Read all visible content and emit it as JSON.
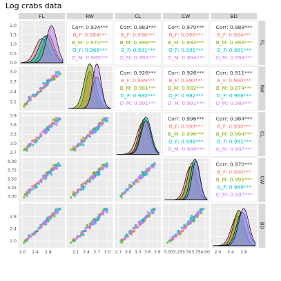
{
  "title": "Log crabs data",
  "chart_data": {
    "type": "scatter",
    "title": "Log crabs data",
    "variables": [
      "FL",
      "RW",
      "CL",
      "CW",
      "BD"
    ],
    "groups": [
      {
        "name": "B_F",
        "color": "#F8766D"
      },
      {
        "name": "B_M",
        "color": "#7CAE00"
      },
      {
        "name": "O_F",
        "color": "#00BFC4"
      },
      {
        "name": "O_M",
        "color": "#C77CFF"
      }
    ],
    "axes": {
      "FL": {
        "range": [
          1.95,
          3.25
        ],
        "ticks": [
          2.0,
          2.4,
          2.8
        ],
        "labels": [
          "2.0",
          "2.4",
          "2.8"
        ]
      },
      "RW": {
        "range": [
          1.9,
          3.1
        ],
        "ticks": [
          2.1,
          2.4,
          2.7,
          3.0
        ],
        "labels": [
          "2.1",
          "2.4",
          "2.7",
          "3.0"
        ]
      },
      "CL": {
        "range": [
          2.65,
          3.95
        ],
        "ticks": [
          2.7,
          3.0,
          3.3,
          3.6,
          3.9
        ],
        "labels": [
          "2.7",
          "3.0",
          "3.3",
          "3.6",
          "3.9"
        ]
      },
      "CW": {
        "range": [
          2.9,
          4.05
        ],
        "ticks": [
          3.0,
          3.25,
          3.5,
          3.75,
          4.0
        ],
        "labels": [
          "3.00",
          "3.25",
          "3.50",
          "3.75",
          "4.00"
        ]
      },
      "BD": {
        "range": [
          1.85,
          3.15
        ],
        "ticks": [
          2.0,
          2.4,
          2.8
        ],
        "labels": [
          "2.0",
          "2.4",
          "2.8"
        ]
      }
    },
    "density_axis": {
      "ticks": [
        0.0,
        0.5,
        1.0,
        1.5,
        2.0
      ],
      "labels": [
        "0.0",
        "0.5",
        "1.0",
        "1.5",
        "2.0"
      ],
      "max": 2.15
    },
    "densities": {
      "FL": [
        [
          2.6,
          0.2,
          1.3
        ],
        [
          2.8,
          0.18,
          1.5
        ],
        [
          2.72,
          0.2,
          1.45
        ],
        [
          2.9,
          0.16,
          2.0
        ]
      ],
      "RW": [
        [
          2.5,
          0.12,
          2.0
        ],
        [
          2.5,
          0.16,
          2.4
        ],
        [
          2.7,
          0.13,
          1.7
        ],
        [
          2.7,
          0.12,
          2.4
        ]
      ],
      "CL": [
        [
          3.45,
          0.18,
          1.7
        ],
        [
          3.5,
          0.16,
          1.9
        ],
        [
          3.55,
          0.16,
          2.0
        ],
        [
          3.55,
          0.15,
          1.8
        ]
      ],
      "CW": [
        [
          3.6,
          0.14,
          1.8
        ],
        [
          3.65,
          0.13,
          2.0
        ],
        [
          3.72,
          0.12,
          2.2
        ],
        [
          3.75,
          0.11,
          2.1
        ]
      ],
      "BD": [
        [
          2.6,
          0.18,
          1.6
        ],
        [
          2.65,
          0.16,
          1.9
        ],
        [
          2.75,
          0.17,
          1.8
        ],
        [
          2.8,
          0.16,
          2.0
        ]
      ]
    },
    "corr_label": "Corr:",
    "correlations": {
      "0-1": {
        "overall": "0.924***",
        "groups": [
          "0.984***",
          "0.974***",
          "0.968***",
          "0.985***"
        ]
      },
      "0-2": {
        "overall": "0.983***",
        "groups": [
          "0.996***",
          "0.996***",
          "0.991***",
          "0.995***"
        ]
      },
      "0-3": {
        "overall": "0.970***",
        "groups": [
          "0.996***",
          "0.993***",
          "0.991***",
          "0.994***"
        ]
      },
      "0-4": {
        "overall": "0.989***",
        "groups": [
          "0.984***",
          "0.993***",
          "0.981***",
          "0.994***"
        ]
      },
      "1-2": {
        "overall": "0.926***",
        "groups": [
          "0.989***",
          "0.981***",
          "0.980***",
          "0.991***"
        ]
      },
      "1-3": {
        "overall": "0.926***",
        "groups": [
          "0.990***",
          "0.982***",
          "0.982***",
          "0.991***"
        ]
      },
      "1-4": {
        "overall": "0.911***",
        "groups": [
          "0.980***",
          "0.974***",
          "0.966***",
          "0.988***"
        ]
      },
      "2-3": {
        "overall": "0.996***",
        "groups": [
          "0.999***",
          "0.996***",
          "0.998***",
          "0.999***"
        ]
      },
      "2-4": {
        "overall": "0.984***",
        "groups": [
          "0.990***",
          "0.994***",
          "0.991***",
          "0.997***"
        ]
      },
      "3-4": {
        "overall": "0.970***",
        "groups": [
          "0.990***",
          "0.995***",
          "0.988***",
          "0.997***"
        ]
      }
    }
  }
}
